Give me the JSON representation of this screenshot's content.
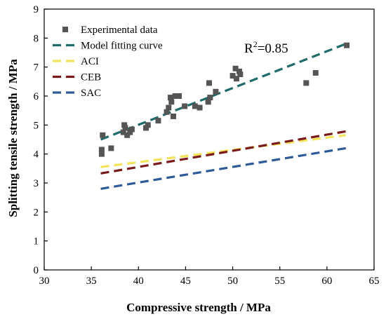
{
  "chart_data": {
    "type": "scatter",
    "xlabel": "Compressive strength / MPa",
    "ylabel": "Splitting tensile strength / MPa",
    "xlim": [
      30,
      65
    ],
    "ylim": [
      0,
      9
    ],
    "x_ticks": [
      "30",
      "35",
      "40",
      "45",
      "50",
      "55",
      "60",
      "65"
    ],
    "y_ticks": [
      "0",
      "1",
      "2",
      "3",
      "4",
      "5",
      "6",
      "7",
      "8",
      "9"
    ],
    "grid": false,
    "legend_position": "top-left",
    "annotation": {
      "base": "R",
      "sup": "2",
      "rest": "=0.85"
    },
    "series": [
      {
        "name": "Experimental data",
        "kind": "scatter",
        "color": "#555555",
        "points": [
          [
            36.1,
            4.0
          ],
          [
            36.1,
            4.15
          ],
          [
            36.2,
            4.65
          ],
          [
            37.1,
            4.2
          ],
          [
            38.4,
            4.75
          ],
          [
            38.5,
            5.0
          ],
          [
            38.6,
            4.9
          ],
          [
            38.8,
            4.65
          ],
          [
            39.1,
            4.75
          ],
          [
            39.3,
            4.85
          ],
          [
            40.8,
            4.9
          ],
          [
            41.0,
            5.0
          ],
          [
            42.1,
            5.15
          ],
          [
            43.0,
            5.45
          ],
          [
            43.2,
            5.6
          ],
          [
            43.4,
            5.95
          ],
          [
            43.5,
            5.8
          ],
          [
            43.7,
            5.3
          ],
          [
            43.9,
            6.0
          ],
          [
            44.3,
            6.0
          ],
          [
            44.9,
            5.65
          ],
          [
            46.0,
            5.65
          ],
          [
            46.5,
            5.6
          ],
          [
            47.4,
            5.8
          ],
          [
            47.5,
            6.45
          ],
          [
            47.6,
            5.95
          ],
          [
            48.2,
            6.15
          ],
          [
            50.0,
            6.7
          ],
          [
            50.3,
            6.95
          ],
          [
            50.4,
            6.6
          ],
          [
            50.7,
            6.85
          ],
          [
            50.8,
            6.75
          ],
          [
            57.8,
            6.45
          ],
          [
            58.8,
            6.8
          ],
          [
            62.1,
            7.75
          ]
        ]
      },
      {
        "name": "Model fitting curve",
        "kind": "line",
        "color": "#1f6a6a",
        "x": [
          36,
          62
        ],
        "y": [
          4.5,
          7.8
        ]
      },
      {
        "name": "ACI",
        "kind": "line",
        "color": "#f2e35b",
        "x": [
          36,
          62
        ],
        "y": [
          3.55,
          4.65
        ]
      },
      {
        "name": "CEB",
        "kind": "line",
        "color": "#7a1a1a",
        "x": [
          36,
          62
        ],
        "y": [
          3.33,
          4.78
        ]
      },
      {
        "name": "SAC",
        "kind": "line",
        "color": "#2e5a99",
        "x": [
          36,
          62
        ],
        "y": [
          2.8,
          4.2
        ]
      }
    ]
  }
}
